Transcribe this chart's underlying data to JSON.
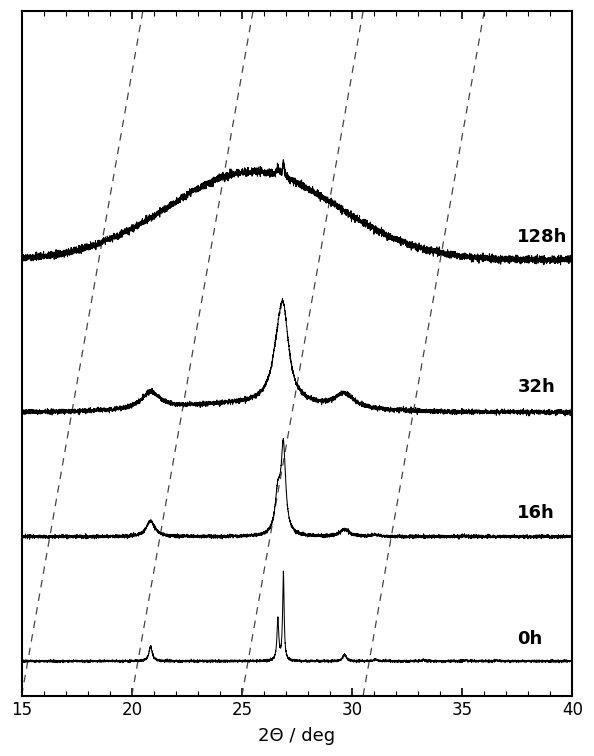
{
  "title": "",
  "xlabel": "2Θ / deg",
  "ylabel": "",
  "xlim": [
    15,
    40
  ],
  "xticks": [
    15,
    20,
    25,
    30,
    35,
    40
  ],
  "labels": [
    "0h",
    "16h",
    "32h",
    "128h"
  ],
  "offsets": [
    0.04,
    0.22,
    0.4,
    0.62
  ],
  "background_color": "#ffffff",
  "line_color": "#000000",
  "dashed_color": "#555555",
  "xlabel_fontsize": 13,
  "label_fontsize": 13,
  "figsize": [
    5.94,
    7.56
  ],
  "dpi": 100
}
